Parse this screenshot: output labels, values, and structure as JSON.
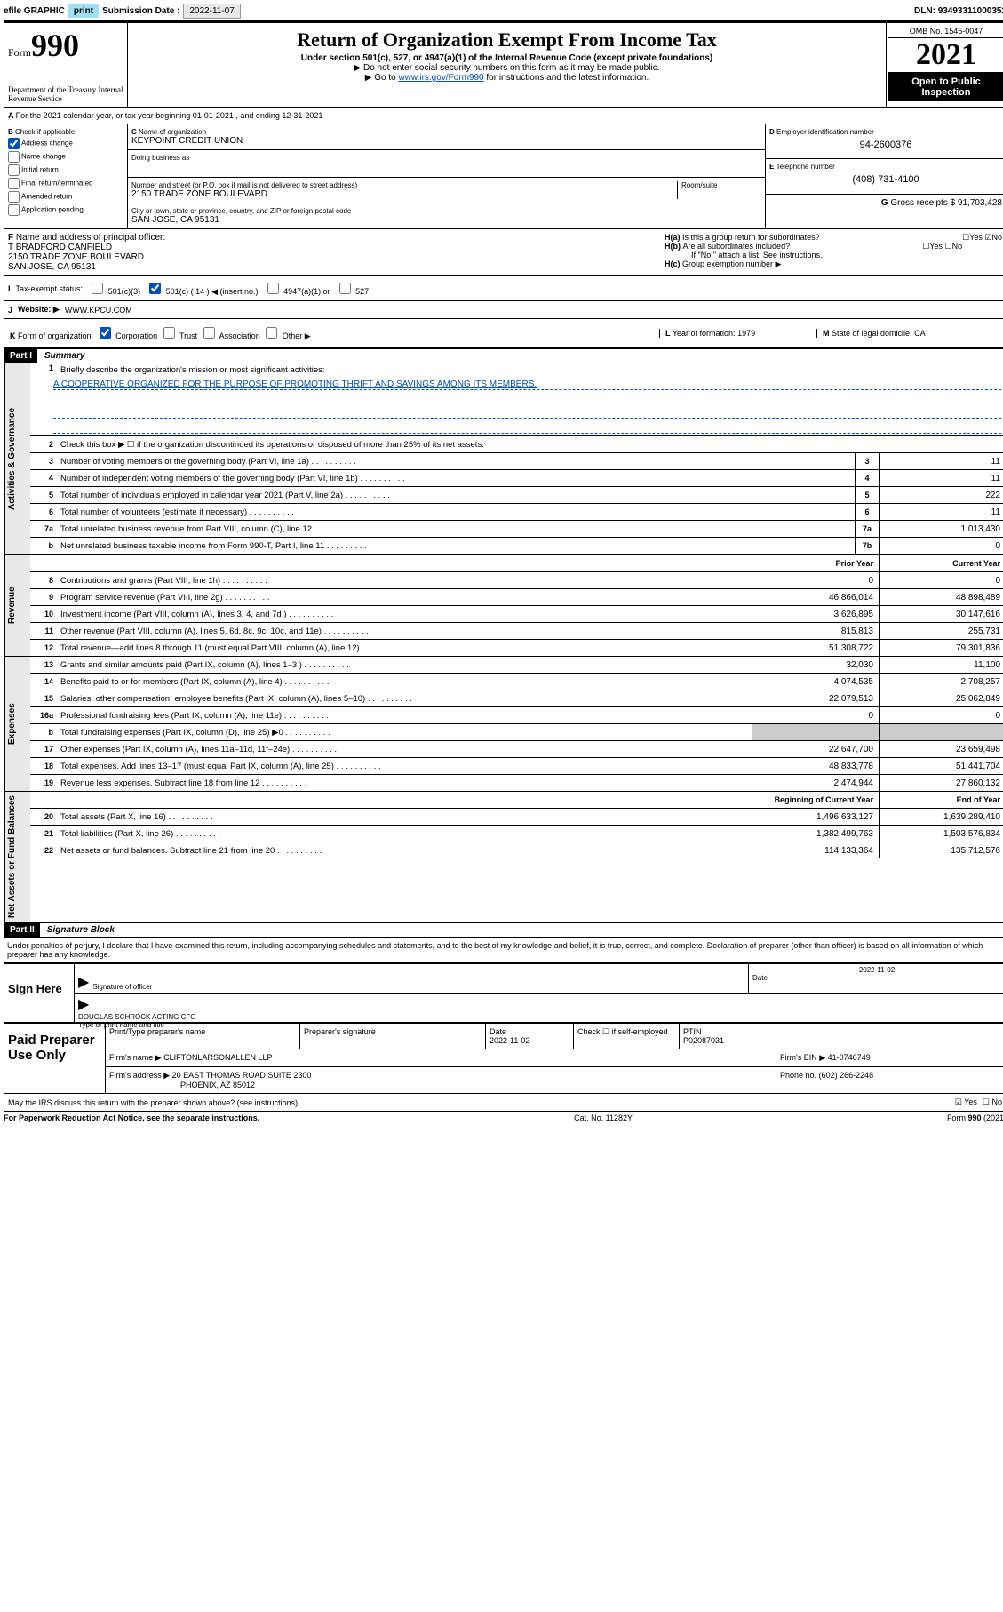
{
  "topbar": {
    "efile_label": "efile GRAPHIC",
    "print": "print",
    "sub_label": "Submission Date :",
    "sub_date": "2022-11-07",
    "dln_label": "DLN:",
    "dln": "93493311000352"
  },
  "header": {
    "form_word": "Form",
    "form_num": "990",
    "dept": "Department of the Treasury\nInternal Revenue Service",
    "title": "Return of Organization Exempt From Income Tax",
    "sub1": "Under section 501(c), 527, or 4947(a)(1) of the Internal Revenue Code (except private foundations)",
    "sub2": "▶ Do not enter social security numbers on this form as it may be made public.",
    "sub3_pre": "▶ Go to ",
    "sub3_link": "www.irs.gov/Form990",
    "sub3_post": " for instructions and the latest information.",
    "omb": "OMB No. 1545-0047",
    "year": "2021",
    "public": "Open to Public Inspection"
  },
  "a_line": {
    "text": "For the 2021 calendar year, or tax year beginning 01-01-2021   , and ending 12-31-2021"
  },
  "b": {
    "header": "Check if applicable:",
    "items": [
      {
        "label": "Address change",
        "checked": true
      },
      {
        "label": "Name change",
        "checked": false
      },
      {
        "label": "Initial return",
        "checked": false
      },
      {
        "label": "Final return/terminated",
        "checked": false
      },
      {
        "label": "Amended return",
        "checked": false
      },
      {
        "label": "Application pending",
        "checked": false
      }
    ]
  },
  "c": {
    "name_label": "Name of organization",
    "name": "KEYPOINT CREDIT UNION",
    "dba_label": "Doing business as",
    "street_label": "Number and street (or P.O. box if mail is not delivered to street address)",
    "room_label": "Room/suite",
    "street": "2150 TRADE ZONE BOULEVARD",
    "city_label": "City or town, state or province, country, and ZIP or foreign postal code",
    "city": "SAN JOSE, CA  95131"
  },
  "d": {
    "label": "Employer identification number",
    "val": "94-2600376"
  },
  "e": {
    "label": "Telephone number",
    "val": "(408) 731-4100"
  },
  "g": {
    "label": "Gross receipts $",
    "val": "91,703,428"
  },
  "f": {
    "label": "Name and address of principal officer:",
    "name": "T BRADFORD CANFIELD",
    "addr1": "2150 TRADE ZONE BOULEVARD",
    "addr2": "SAN JOSE, CA  95131"
  },
  "h": {
    "a": "Is this a group return for subordinates?",
    "b": "Are all subordinates included?",
    "note": "If \"No,\" attach a list. See instructions.",
    "c": "Group exemption number ▶",
    "yes": "Yes",
    "no": "No"
  },
  "i": {
    "label": "Tax-exempt status:",
    "opt1": "501(c)(3)",
    "opt2": "501(c) ( 14 ) ◀ (insert no.)",
    "opt3": "4947(a)(1) or",
    "opt4": "527"
  },
  "j": {
    "label": "Website: ▶",
    "val": "WWW.KPCU.COM"
  },
  "k": {
    "label": "Form of organization:",
    "opts": [
      "Corporation",
      "Trust",
      "Association",
      "Other ▶"
    ],
    "l_label": "Year of formation:",
    "l_val": "1979",
    "m_label": "State of legal domicile:",
    "m_val": "CA"
  },
  "part1": {
    "hdr": "Part I",
    "title": "Summary",
    "l1": "Briefly describe the organization's mission or most significant activities:",
    "mission": "A COOPERATIVE ORGANIZED FOR THE PURPOSE OF PROMOTING THRIFT AND SAVINGS AMONG ITS MEMBERS.",
    "l2": "Check this box ▶ ☐  if the organization discontinued its operations or disposed of more than 25% of its net assets.",
    "sides": {
      "gov": "Activities & Governance",
      "rev": "Revenue",
      "exp": "Expenses",
      "net": "Net Assets or Fund Balances"
    },
    "col_prior": "Prior Year",
    "col_curr": "Current Year",
    "col_beg": "Beginning of Current Year",
    "col_end": "End of Year",
    "lines_gov": [
      {
        "n": "3",
        "t": "Number of voting members of the governing body (Part VI, line 1a)",
        "box": "3",
        "v": "11"
      },
      {
        "n": "4",
        "t": "Number of independent voting members of the governing body (Part VI, line 1b)",
        "box": "4",
        "v": "11"
      },
      {
        "n": "5",
        "t": "Total number of individuals employed in calendar year 2021 (Part V, line 2a)",
        "box": "5",
        "v": "222"
      },
      {
        "n": "6",
        "t": "Total number of volunteers (estimate if necessary)",
        "box": "6",
        "v": "11"
      },
      {
        "n": "7a",
        "t": "Total unrelated business revenue from Part VIII, column (C), line 12",
        "box": "7a",
        "v": "1,013,430"
      },
      {
        "n": "b",
        "t": "Net unrelated business taxable income from Form 990-T, Part I, line 11",
        "box": "7b",
        "v": "0"
      }
    ],
    "lines_rev": [
      {
        "n": "8",
        "t": "Contributions and grants (Part VIII, line 1h)",
        "p": "0",
        "c": "0"
      },
      {
        "n": "9",
        "t": "Program service revenue (Part VIII, line 2g)",
        "p": "46,866,014",
        "c": "48,898,489"
      },
      {
        "n": "10",
        "t": "Investment income (Part VIII, column (A), lines 3, 4, and 7d )",
        "p": "3,626,895",
        "c": "30,147,616"
      },
      {
        "n": "11",
        "t": "Other revenue (Part VIII, column (A), lines 5, 6d, 8c, 9c, 10c, and 11e)",
        "p": "815,813",
        "c": "255,731"
      },
      {
        "n": "12",
        "t": "Total revenue—add lines 8 through 11 (must equal Part VIII, column (A), line 12)",
        "p": "51,308,722",
        "c": "79,301,836"
      }
    ],
    "lines_exp": [
      {
        "n": "13",
        "t": "Grants and similar amounts paid (Part IX, column (A), lines 1–3 )",
        "p": "32,030",
        "c": "11,100"
      },
      {
        "n": "14",
        "t": "Benefits paid to or for members (Part IX, column (A), line 4)",
        "p": "4,074,535",
        "c": "2,708,257"
      },
      {
        "n": "15",
        "t": "Salaries, other compensation, employee benefits (Part IX, column (A), lines 5–10)",
        "p": "22,079,513",
        "c": "25,062,849"
      },
      {
        "n": "16a",
        "t": "Professional fundraising fees (Part IX, column (A), line 11e)",
        "p": "0",
        "c": "0"
      },
      {
        "n": "b",
        "t": "Total fundraising expenses (Part IX, column (D), line 25) ▶0",
        "p": "",
        "c": "",
        "shade": true
      },
      {
        "n": "17",
        "t": "Other expenses (Part IX, column (A), lines 11a–11d, 11f–24e)",
        "p": "22,647,700",
        "c": "23,659,498"
      },
      {
        "n": "18",
        "t": "Total expenses. Add lines 13–17 (must equal Part IX, column (A), line 25)",
        "p": "48,833,778",
        "c": "51,441,704"
      },
      {
        "n": "19",
        "t": "Revenue less expenses. Subtract line 18 from line 12",
        "p": "2,474,944",
        "c": "27,860,132"
      }
    ],
    "lines_net": [
      {
        "n": "20",
        "t": "Total assets (Part X, line 16)",
        "p": "1,496,633,127",
        "c": "1,639,289,410"
      },
      {
        "n": "21",
        "t": "Total liabilities (Part X, line 26)",
        "p": "1,382,499,763",
        "c": "1,503,576,834"
      },
      {
        "n": "22",
        "t": "Net assets or fund balances. Subtract line 21 from line 20",
        "p": "114,133,364",
        "c": "135,712,576"
      }
    ]
  },
  "part2": {
    "hdr": "Part II",
    "title": "Signature Block",
    "penalties": "Under penalties of perjury, I declare that I have examined this return, including accompanying schedules and statements, and to the best of my knowledge and belief, it is true, correct, and complete. Declaration of preparer (other than officer) is based on all information of which preparer has any knowledge."
  },
  "sign": {
    "here": "Sign Here",
    "sig_off": "Signature of officer",
    "date_label": "Date",
    "date": "2022-11-02",
    "name": "DOUGLAS SCHROCK  ACTING CFO",
    "name_label": "Type or print name and title"
  },
  "paid": {
    "label": "Paid Preparer Use Only",
    "col1": "Print/Type preparer's name",
    "col2": "Preparer's signature",
    "col3": "Date",
    "date": "2022-11-02",
    "col4": "Check ☐ if self-employed",
    "col5_l": "PTIN",
    "col5_v": "P02087031",
    "firm_name_l": "Firm's name    ▶",
    "firm_name": "CLIFTONLARSONALLEN LLP",
    "firm_ein_l": "Firm's EIN ▶",
    "firm_ein": "41-0746749",
    "firm_addr_l": "Firm's address ▶",
    "firm_addr1": "20 EAST THOMAS ROAD SUITE 2300",
    "firm_addr2": "PHOENIX, AZ  85012",
    "phone_l": "Phone no.",
    "phone": "(602) 266-2248"
  },
  "bottom": {
    "discuss": "May the IRS discuss this return with the preparer shown above? (see instructions)",
    "yes": "Yes",
    "no": "No",
    "paperwork": "For Paperwork Reduction Act Notice, see the separate instructions.",
    "cat": "Cat. No. 11282Y",
    "form": "Form 990 (2021)"
  }
}
